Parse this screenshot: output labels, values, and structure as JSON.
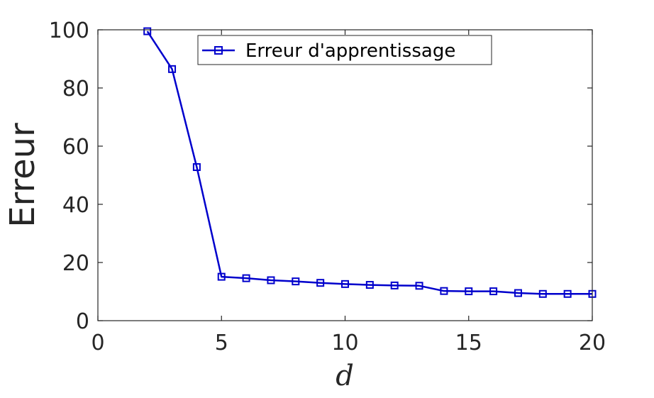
{
  "chart_data": {
    "type": "line",
    "title": "",
    "xlabel": "d",
    "ylabel": "Erreur",
    "xlim": [
      0,
      20
    ],
    "ylim": [
      0,
      100
    ],
    "xticks": [
      0,
      5,
      10,
      15,
      20
    ],
    "yticks": [
      0,
      20,
      40,
      60,
      80,
      100
    ],
    "x_tick_labels": [
      "0",
      "5",
      "10",
      "15",
      "20"
    ],
    "y_tick_labels": [
      "0",
      "20",
      "40",
      "60",
      "80",
      "100"
    ],
    "grid": false,
    "legend_position": "top-center",
    "series": [
      {
        "name": "Erreur d'apprentissage",
        "color": "#0000cc",
        "marker": "square",
        "x": [
          2,
          3,
          4,
          5,
          6,
          7,
          8,
          9,
          10,
          11,
          12,
          13,
          14,
          15,
          16,
          17,
          18,
          19,
          20
        ],
        "y": [
          99.5,
          86.5,
          52.8,
          15.1,
          14.6,
          13.9,
          13.5,
          13.0,
          12.6,
          12.3,
          12.1,
          12.0,
          10.2,
          10.1,
          10.1,
          9.5,
          9.2,
          9.2,
          9.2
        ]
      }
    ]
  }
}
